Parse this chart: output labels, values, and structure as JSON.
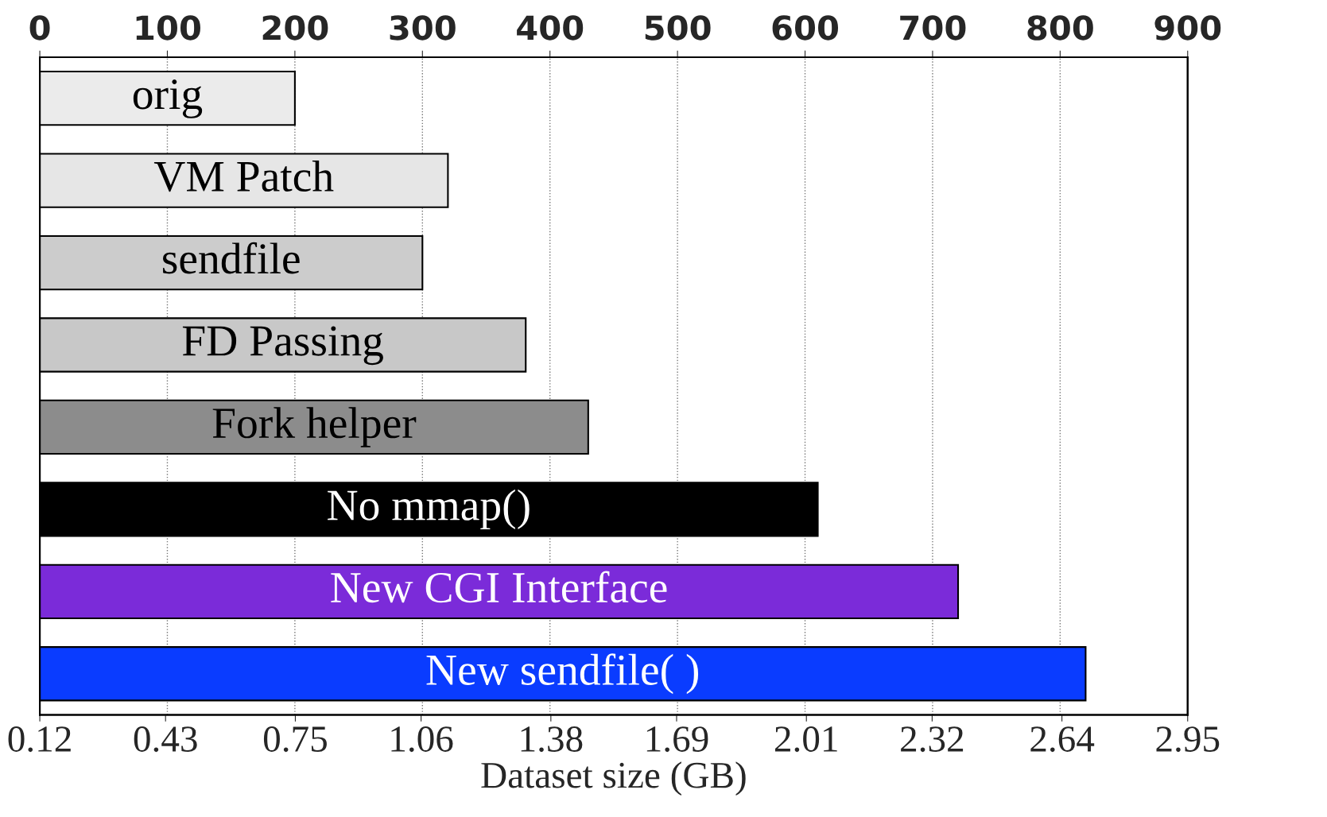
{
  "chart_data": {
    "type": "bar",
    "orientation": "horizontal",
    "xlabel": "Dataset size (GB)",
    "categories": [
      "orig",
      "VM Patch",
      "sendfile",
      "FD Passing",
      "Fork helper",
      "No mmap()",
      "New CGI Interface",
      "New sendfile( )"
    ],
    "series": [
      {
        "axis": "x2",
        "values": [
          200,
          320,
          300,
          381,
          430,
          610,
          720,
          820
        ],
        "colors": [
          "#ebebeb",
          "#e6e6e6",
          "#cccccc",
          "#c8c8c8",
          "#8c8c8c",
          "#000000",
          "#7b2bd9",
          "#0a3cff"
        ]
      }
    ],
    "xlim": [
      0.12,
      2.95
    ],
    "xticks": [
      0.12,
      0.43,
      0.75,
      1.06,
      1.38,
      1.69,
      2.01,
      2.32,
      2.64,
      2.95
    ],
    "x2lim": [
      0,
      900
    ],
    "x2ticks": [
      0,
      100,
      200,
      300,
      400,
      500,
      600,
      700,
      800,
      900
    ],
    "grid": "x"
  }
}
